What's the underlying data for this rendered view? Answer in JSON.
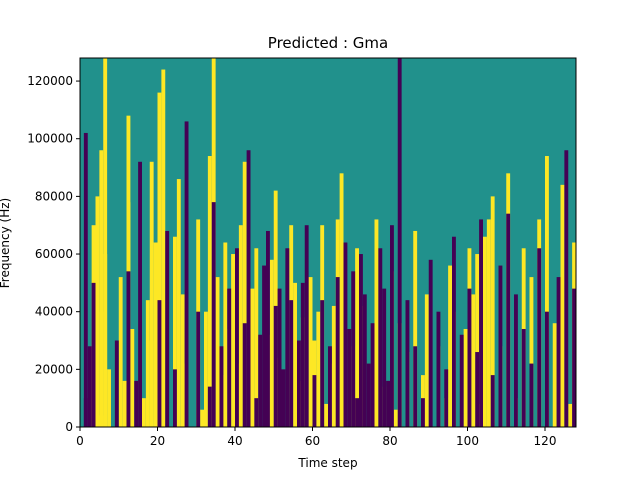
{
  "chart_data": {
    "type": "heatmap",
    "title": "Predicted : Gma",
    "xlabel": "Time step",
    "ylabel": "Frequency (Hz)",
    "xlim": [
      0,
      128
    ],
    "ylim": [
      0,
      128000
    ],
    "xticks": [
      0,
      20,
      40,
      60,
      80,
      100,
      120
    ],
    "yticks": [
      0,
      20000,
      40000,
      60000,
      80000,
      100000,
      120000
    ],
    "colorscale": {
      "low": "#440154",
      "mid": "#21918c",
      "high": "#fde725"
    },
    "background_value": 0,
    "low_value": -1,
    "high_value": 1,
    "grid": false,
    "cells_high": [
      [
        4,
        0,
        4000
      ],
      [
        5,
        1,
        4000
      ],
      [
        3,
        6,
        10000
      ],
      [
        7,
        14,
        20000
      ],
      [
        5,
        34,
        40000
      ],
      [
        6,
        50,
        60000
      ],
      [
        3,
        64,
        70000
      ],
      [
        4,
        76,
        80000
      ],
      [
        5,
        90,
        96000
      ],
      [
        6,
        112,
        128000
      ],
      [
        11,
        8,
        16000
      ],
      [
        13,
        28,
        34000
      ],
      [
        10,
        46,
        52000
      ],
      [
        12,
        72,
        78000
      ],
      [
        12,
        100,
        108000
      ],
      [
        16,
        4,
        10000
      ],
      [
        18,
        22,
        30000
      ],
      [
        17,
        38,
        44000
      ],
      [
        19,
        58,
        64000
      ],
      [
        18,
        86,
        92000
      ],
      [
        20,
        110,
        116000
      ],
      [
        21,
        118,
        124000
      ],
      [
        24,
        4,
        8000
      ],
      [
        24,
        60,
        66000
      ],
      [
        26,
        40,
        46000
      ],
      [
        25,
        82,
        86000
      ],
      [
        27,
        16,
        22000
      ],
      [
        31,
        2,
        6000
      ],
      [
        32,
        34,
        40000
      ],
      [
        30,
        66,
        72000
      ],
      [
        33,
        88,
        94000
      ],
      [
        34,
        122,
        128000
      ],
      [
        36,
        12,
        18000
      ],
      [
        35,
        44,
        52000
      ],
      [
        37,
        50,
        64000
      ],
      [
        38,
        28,
        34000
      ],
      [
        40,
        16,
        22000
      ],
      [
        39,
        54,
        60000
      ],
      [
        41,
        66,
        70000
      ],
      [
        42,
        84,
        92000
      ],
      [
        44,
        40,
        48000
      ],
      [
        45,
        56,
        62000
      ],
      [
        48,
        26,
        32000
      ],
      [
        49,
        52,
        58000
      ],
      [
        50,
        76,
        82000
      ],
      [
        51,
        18,
        24000
      ],
      [
        54,
        60,
        70000
      ],
      [
        55,
        42,
        50000
      ],
      [
        56,
        10,
        16000
      ],
      [
        57,
        30,
        38000
      ],
      [
        58,
        2,
        6000
      ],
      [
        59,
        44,
        52000
      ],
      [
        60,
        8,
        30000
      ],
      [
        61,
        30,
        40000
      ],
      [
        62,
        50,
        70000
      ],
      [
        63,
        0,
        8000
      ],
      [
        64,
        14,
        22000
      ],
      [
        65,
        32,
        42000
      ],
      [
        66,
        68,
        72000
      ],
      [
        67,
        82,
        88000
      ],
      [
        70,
        20,
        28000
      ],
      [
        71,
        56,
        62000
      ],
      [
        72,
        36,
        42000
      ],
      [
        76,
        66,
        72000
      ],
      [
        78,
        8,
        14000
      ],
      [
        80,
        48,
        54000
      ],
      [
        81,
        2,
        6000
      ],
      [
        82,
        30,
        36000
      ],
      [
        84,
        20,
        26000
      ],
      [
        86,
        62,
        68000
      ],
      [
        88,
        12,
        18000
      ],
      [
        89,
        38,
        46000
      ],
      [
        92,
        22,
        28000
      ],
      [
        94,
        4,
        10000
      ],
      [
        95,
        50,
        56000
      ],
      [
        96,
        34,
        40000
      ],
      [
        99,
        28,
        34000
      ],
      [
        100,
        56,
        62000
      ],
      [
        101,
        40,
        46000
      ],
      [
        102,
        50,
        60000
      ],
      [
        103,
        0,
        8000
      ],
      [
        104,
        60,
        66000
      ],
      [
        105,
        66,
        72000
      ],
      [
        106,
        74,
        80000
      ],
      [
        108,
        22,
        28000
      ],
      [
        110,
        82,
        88000
      ],
      [
        112,
        4,
        10000
      ],
      [
        114,
        56,
        62000
      ],
      [
        116,
        46,
        52000
      ],
      [
        118,
        66,
        72000
      ],
      [
        120,
        88,
        94000
      ],
      [
        122,
        30,
        36000
      ],
      [
        124,
        78,
        84000
      ],
      [
        126,
        2,
        8000
      ],
      [
        127,
        60,
        64000
      ]
    ],
    "cells_low": [
      [
        1,
        2,
        10000
      ],
      [
        2,
        24,
        28000
      ],
      [
        3,
        44,
        50000
      ],
      [
        1,
        98,
        102000
      ],
      [
        9,
        26,
        30000
      ],
      [
        12,
        50,
        54000
      ],
      [
        14,
        10,
        16000
      ],
      [
        15,
        86,
        92000
      ],
      [
        20,
        40,
        44000
      ],
      [
        22,
        64,
        68000
      ],
      [
        24,
        14,
        20000
      ],
      [
        27,
        102,
        106000
      ],
      [
        30,
        34,
        40000
      ],
      [
        33,
        8,
        14000
      ],
      [
        34,
        72,
        78000
      ],
      [
        36,
        22,
        28000
      ],
      [
        38,
        44,
        48000
      ],
      [
        40,
        56,
        62000
      ],
      [
        42,
        30,
        36000
      ],
      [
        43,
        92,
        96000
      ],
      [
        45,
        4,
        10000
      ],
      [
        46,
        26,
        32000
      ],
      [
        47,
        50,
        56000
      ],
      [
        48,
        64,
        68000
      ],
      [
        50,
        36,
        42000
      ],
      [
        51,
        44,
        48000
      ],
      [
        52,
        14,
        20000
      ],
      [
        53,
        58,
        62000
      ],
      [
        54,
        40,
        44000
      ],
      [
        56,
        24,
        30000
      ],
      [
        57,
        46,
        50000
      ],
      [
        58,
        66,
        70000
      ],
      [
        60,
        12,
        18000
      ],
      [
        62,
        40,
        44000
      ],
      [
        64,
        22,
        28000
      ],
      [
        66,
        46,
        52000
      ],
      [
        68,
        60,
        64000
      ],
      [
        69,
        28,
        34000
      ],
      [
        70,
        48,
        54000
      ],
      [
        71,
        4,
        10000
      ],
      [
        72,
        54,
        60000
      ],
      [
        73,
        40,
        46000
      ],
      [
        74,
        16,
        22000
      ],
      [
        75,
        30,
        36000
      ],
      [
        77,
        58,
        62000
      ],
      [
        78,
        44,
        48000
      ],
      [
        79,
        10,
        16000
      ],
      [
        80,
        64,
        70000
      ],
      [
        82,
        120,
        128000
      ],
      [
        84,
        40,
        44000
      ],
      [
        86,
        22,
        28000
      ],
      [
        88,
        4,
        10000
      ],
      [
        90,
        52,
        58000
      ],
      [
        92,
        36,
        40000
      ],
      [
        94,
        14,
        20000
      ],
      [
        96,
        62,
        66000
      ],
      [
        98,
        28,
        32000
      ],
      [
        100,
        44,
        48000
      ],
      [
        102,
        20,
        26000
      ],
      [
        103,
        66,
        72000
      ],
      [
        106,
        12,
        18000
      ],
      [
        108,
        52,
        56000
      ],
      [
        110,
        70,
        74000
      ],
      [
        112,
        40,
        46000
      ],
      [
        114,
        28,
        34000
      ],
      [
        116,
        16,
        22000
      ],
      [
        118,
        58,
        62000
      ],
      [
        120,
        34,
        40000
      ],
      [
        123,
        46,
        52000
      ],
      [
        125,
        92,
        96000
      ],
      [
        127,
        44,
        48000
      ]
    ]
  }
}
